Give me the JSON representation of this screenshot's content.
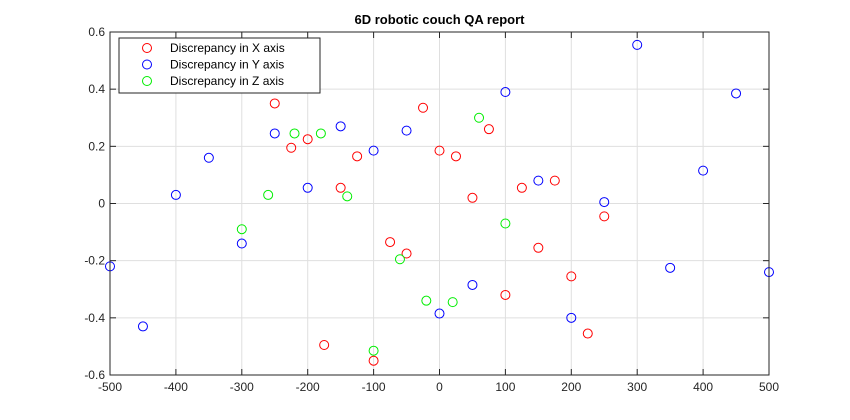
{
  "chart_data": {
    "type": "scatter",
    "title": "6D robotic couch QA report",
    "xlabel": "",
    "ylabel": "",
    "xlim": [
      -500,
      500
    ],
    "ylim": [
      -0.6,
      0.6
    ],
    "x_ticks": [
      -500,
      -400,
      -300,
      -200,
      -100,
      0,
      100,
      200,
      300,
      400,
      500
    ],
    "y_ticks": [
      -0.6,
      -0.4,
      -0.2,
      0,
      0.2,
      0.4,
      0.6
    ],
    "x_tick_labels": [
      "-500",
      "-400",
      "-300",
      "-200",
      "-100",
      "0",
      "100",
      "200",
      "300",
      "400",
      "500"
    ],
    "y_tick_labels": [
      "-0.6",
      "-0.4",
      "-0.2",
      "0",
      "0.2",
      "0.4",
      "0.6"
    ],
    "grid": true,
    "legend_position": "top-left",
    "marker": "open-circle",
    "series": [
      {
        "name": "Discrepancy in X axis",
        "color": "#ff0000",
        "points": [
          [
            -250,
            0.35
          ],
          [
            -225,
            0.195
          ],
          [
            -200,
            0.225
          ],
          [
            -175,
            -0.495
          ],
          [
            -150,
            0.055
          ],
          [
            -125,
            0.165
          ],
          [
            -100,
            -0.55
          ],
          [
            -75,
            -0.135
          ],
          [
            -50,
            -0.175
          ],
          [
            -25,
            0.335
          ],
          [
            0,
            0.185
          ],
          [
            25,
            0.165
          ],
          [
            50,
            0.02
          ],
          [
            75,
            0.26
          ],
          [
            100,
            -0.32
          ],
          [
            125,
            0.055
          ],
          [
            150,
            -0.155
          ],
          [
            175,
            0.08
          ],
          [
            200,
            -0.255
          ],
          [
            225,
            -0.455
          ],
          [
            250,
            -0.045
          ]
        ]
      },
      {
        "name": "Discrepancy in Y axis",
        "color": "#0000ff",
        "points": [
          [
            -500,
            -0.22
          ],
          [
            -450,
            -0.43
          ],
          [
            -400,
            0.03
          ],
          [
            -350,
            0.16
          ],
          [
            -300,
            -0.14
          ],
          [
            -250,
            0.245
          ],
          [
            -200,
            0.055
          ],
          [
            -150,
            0.27
          ],
          [
            -100,
            0.185
          ],
          [
            -50,
            0.255
          ],
          [
            0,
            -0.385
          ],
          [
            50,
            -0.285
          ],
          [
            100,
            0.39
          ],
          [
            150,
            0.08
          ],
          [
            200,
            -0.4
          ],
          [
            250,
            0.005
          ],
          [
            300,
            0.555
          ],
          [
            350,
            -0.225
          ],
          [
            400,
            0.115
          ],
          [
            450,
            0.385
          ],
          [
            500,
            -0.24
          ]
        ]
      },
      {
        "name": "Discrepancy in Z axis",
        "color": "#00ee00",
        "points": [
          [
            -300,
            -0.09
          ],
          [
            -260,
            0.03
          ],
          [
            -220,
            0.245
          ],
          [
            -180,
            0.245
          ],
          [
            -140,
            0.025
          ],
          [
            -100,
            -0.515
          ],
          [
            -60,
            -0.195
          ],
          [
            -20,
            -0.34
          ],
          [
            20,
            -0.345
          ],
          [
            60,
            0.3
          ],
          [
            100,
            -0.07
          ]
        ]
      }
    ]
  }
}
